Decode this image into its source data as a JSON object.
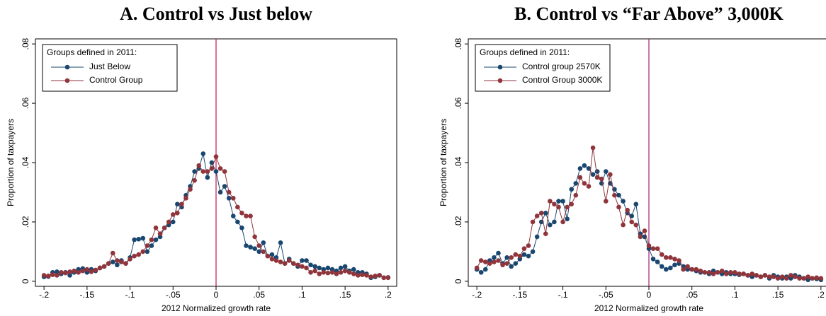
{
  "chart_data": [
    {
      "type": "line",
      "title": "A. Control vs Just below",
      "xlabel": "2012 Normalized growth rate",
      "ylabel": "Proportion of taxpayers",
      "legend_title": "Groups defined in 2011:",
      "legend": "top-left",
      "vline": 0,
      "vline_color": "#c1174b",
      "x": [
        -0.2,
        -0.195,
        -0.19,
        -0.185,
        -0.18,
        -0.175,
        -0.17,
        -0.165,
        -0.16,
        -0.155,
        -0.15,
        -0.145,
        -0.14,
        -0.135,
        -0.13,
        -0.125,
        -0.12,
        -0.115,
        -0.11,
        -0.105,
        -0.1,
        -0.095,
        -0.09,
        -0.085,
        -0.08,
        -0.075,
        -0.07,
        -0.065,
        -0.06,
        -0.055,
        -0.05,
        -0.045,
        -0.04,
        -0.035,
        -0.03,
        -0.025,
        -0.02,
        -0.015,
        -0.01,
        -0.005,
        0,
        0.005,
        0.01,
        0.015,
        0.02,
        0.025,
        0.03,
        0.035,
        0.04,
        0.045,
        0.05,
        0.055,
        0.06,
        0.065,
        0.07,
        0.075,
        0.08,
        0.085,
        0.09,
        0.095,
        0.1,
        0.105,
        0.11,
        0.115,
        0.12,
        0.125,
        0.13,
        0.135,
        0.14,
        0.145,
        0.15,
        0.155,
        0.16,
        0.165,
        0.17,
        0.175,
        0.18,
        0.185,
        0.19,
        0.195,
        0.2
      ],
      "series": [
        {
          "name": "Just Below",
          "color": "#1a476f",
          "values": [
            0.0015,
            0.0016,
            0.003,
            0.0032,
            0.0025,
            0.003,
            0.002,
            0.003,
            0.004,
            0.0043,
            0.003,
            0.004,
            0.0035,
            0.0045,
            0.005,
            0.006,
            0.0065,
            0.0055,
            0.007,
            0.006,
            0.008,
            0.014,
            0.0142,
            0.0145,
            0.01,
            0.012,
            0.014,
            0.015,
            0.018,
            0.019,
            0.02,
            0.026,
            0.025,
            0.029,
            0.032,
            0.037,
            0.038,
            0.043,
            0.035,
            0.04,
            0.037,
            0.03,
            0.032,
            0.028,
            0.022,
            0.02,
            0.018,
            0.012,
            0.0115,
            0.011,
            0.01,
            0.013,
            0.0085,
            0.009,
            0.008,
            0.013,
            0.006,
            0.0075,
            0.006,
            0.005,
            0.007,
            0.007,
            0.0055,
            0.005,
            0.0045,
            0.004,
            0.0045,
            0.004,
            0.0035,
            0.0045,
            0.005,
            0.0035,
            0.004,
            0.003,
            0.003,
            0.0025,
            0.0012,
            0.0015,
            0.002,
            0.0012,
            0.0013
          ]
        },
        {
          "name": "Control Group",
          "color": "#90353b",
          "values": [
            0.002,
            0.0018,
            0.0022,
            0.002,
            0.003,
            0.0028,
            0.0032,
            0.0035,
            0.003,
            0.0035,
            0.004,
            0.0032,
            0.0038,
            0.0045,
            0.005,
            0.006,
            0.0095,
            0.007,
            0.0065,
            0.006,
            0.0075,
            0.0085,
            0.009,
            0.01,
            0.012,
            0.014,
            0.018,
            0.016,
            0.018,
            0.02,
            0.0225,
            0.023,
            0.026,
            0.028,
            0.031,
            0.034,
            0.039,
            0.037,
            0.037,
            0.038,
            0.042,
            0.038,
            0.037,
            0.03,
            0.028,
            0.025,
            0.023,
            0.022,
            0.022,
            0.015,
            0.012,
            0.01,
            0.0085,
            0.0075,
            0.007,
            0.0065,
            0.006,
            0.007,
            0.006,
            0.0055,
            0.005,
            0.0045,
            0.003,
            0.0035,
            0.0025,
            0.003,
            0.0028,
            0.003,
            0.0025,
            0.003,
            0.0035,
            0.003,
            0.0025,
            0.002,
            0.0022,
            0.002,
            0.0015,
            0.0018,
            0.002,
            0.0012,
            0.0012
          ]
        }
      ],
      "xlim": [
        -0.21,
        0.21
      ],
      "ylim": [
        -0.0017,
        0.0817
      ],
      "xticks": [
        {
          "value": -0.2,
          "label": "-.2"
        },
        {
          "value": -0.15,
          "label": "-.15"
        },
        {
          "value": -0.1,
          "label": "-.1"
        },
        {
          "value": -0.05,
          "label": "-.05"
        },
        0,
        {
          "value": 0.05,
          "label": ".05"
        },
        {
          "value": 0.1,
          "label": ".1"
        },
        {
          "value": 0.15,
          "label": ".15"
        },
        {
          "value": 0.2,
          "label": ".2"
        }
      ],
      "yticks": [
        0,
        {
          "value": 0.02,
          "label": ".02"
        },
        {
          "value": 0.04,
          "label": ".04"
        },
        {
          "value": 0.06,
          "label": ".06"
        },
        {
          "value": 0.08,
          "label": ".08"
        }
      ]
    },
    {
      "type": "line",
      "title": "B. Control vs “Far Above” 3,000K",
      "xlabel": "2012 Normalized growth rate",
      "ylabel": "Proportion of taxpayers",
      "legend_title": "Groups defined in 2011:",
      "legend": "top-left",
      "vline": 0,
      "vline_color": "#a0207a",
      "x": [
        -0.2,
        -0.195,
        -0.19,
        -0.185,
        -0.18,
        -0.175,
        -0.17,
        -0.165,
        -0.16,
        -0.155,
        -0.15,
        -0.145,
        -0.14,
        -0.135,
        -0.13,
        -0.125,
        -0.12,
        -0.115,
        -0.11,
        -0.105,
        -0.1,
        -0.095,
        -0.09,
        -0.085,
        -0.08,
        -0.075,
        -0.07,
        -0.065,
        -0.06,
        -0.055,
        -0.05,
        -0.045,
        -0.04,
        -0.035,
        -0.03,
        -0.025,
        -0.02,
        -0.015,
        -0.01,
        -0.005,
        0,
        0.005,
        0.01,
        0.015,
        0.02,
        0.025,
        0.03,
        0.035,
        0.04,
        0.045,
        0.05,
        0.055,
        0.06,
        0.065,
        0.07,
        0.075,
        0.08,
        0.085,
        0.09,
        0.095,
        0.1,
        0.105,
        0.11,
        0.115,
        0.12,
        0.125,
        0.13,
        0.135,
        0.14,
        0.145,
        0.15,
        0.155,
        0.16,
        0.165,
        0.17,
        0.175,
        0.18,
        0.185,
        0.19,
        0.195,
        0.2
      ],
      "series": [
        {
          "name": "Control group 2570K",
          "color": "#1a476f",
          "values": [
            0.004,
            0.003,
            0.004,
            0.007,
            0.008,
            0.0095,
            0.006,
            0.008,
            0.005,
            0.006,
            0.0075,
            0.009,
            0.0085,
            0.01,
            0.015,
            0.02,
            0.023,
            0.019,
            0.02,
            0.027,
            0.027,
            0.021,
            0.031,
            0.033,
            0.038,
            0.039,
            0.038,
            0.036,
            0.037,
            0.033,
            0.037,
            0.033,
            0.031,
            0.029,
            0.027,
            0.023,
            0.022,
            0.026,
            0.016,
            0.015,
            0.011,
            0.0075,
            0.0065,
            0.005,
            0.004,
            0.0045,
            0.0055,
            0.006,
            0.005,
            0.004,
            0.004,
            0.0035,
            0.003,
            0.003,
            0.0025,
            0.0035,
            0.003,
            0.0025,
            0.003,
            0.0025,
            0.0025,
            0.0022,
            0.0025,
            0.002,
            0.0015,
            0.002,
            0.0015,
            0.002,
            0.001,
            0.002,
            0.0015,
            0.001,
            0.0015,
            0.001,
            0.002,
            0.0015,
            0.001,
            0.0005,
            0.001,
            0.0008,
            0.0005
          ]
        },
        {
          "name": "Control Group 3000K",
          "color": "#90353b",
          "values": [
            0.0045,
            0.007,
            0.0065,
            0.006,
            0.0065,
            0.007,
            0.0055,
            0.006,
            0.008,
            0.009,
            0.0085,
            0.011,
            0.012,
            0.02,
            0.022,
            0.023,
            0.016,
            0.027,
            0.026,
            0.025,
            0.02,
            0.025,
            0.026,
            0.029,
            0.035,
            0.033,
            0.032,
            0.045,
            0.035,
            0.0345,
            0.027,
            0.036,
            0.029,
            0.025,
            0.019,
            0.024,
            0.02,
            0.019,
            0.015,
            0.017,
            0.012,
            0.011,
            0.011,
            0.009,
            0.008,
            0.008,
            0.0075,
            0.007,
            0.004,
            0.005,
            0.004,
            0.004,
            0.0035,
            0.003,
            0.003,
            0.0025,
            0.003,
            0.0035,
            0.0025,
            0.003,
            0.003,
            0.0025,
            0.0025,
            0.002,
            0.0025,
            0.002,
            0.0015,
            0.002,
            0.0015,
            0.0015,
            0.001,
            0.0015,
            0.001,
            0.002,
            0.0015,
            0.001,
            0.001,
            0.0015,
            0.001,
            0.0012,
            0.001
          ]
        }
      ],
      "xlim": [
        -0.21,
        0.21
      ],
      "ylim": [
        -0.0017,
        0.0817
      ],
      "xticks": [
        {
          "value": -0.2,
          "label": "-.2"
        },
        {
          "value": -0.15,
          "label": "-.15"
        },
        {
          "value": -0.1,
          "label": "-.1"
        },
        {
          "value": -0.05,
          "label": "-.05"
        },
        0,
        {
          "value": 0.05,
          "label": ".05"
        },
        {
          "value": 0.1,
          "label": ".1"
        },
        {
          "value": 0.15,
          "label": ".15"
        },
        {
          "value": 0.2,
          "label": ".2"
        }
      ],
      "yticks": [
        0,
        {
          "value": 0.02,
          "label": ".02"
        },
        {
          "value": 0.04,
          "label": ".04"
        },
        {
          "value": 0.06,
          "label": ".06"
        },
        {
          "value": 0.08,
          "label": ".08"
        }
      ]
    }
  ]
}
